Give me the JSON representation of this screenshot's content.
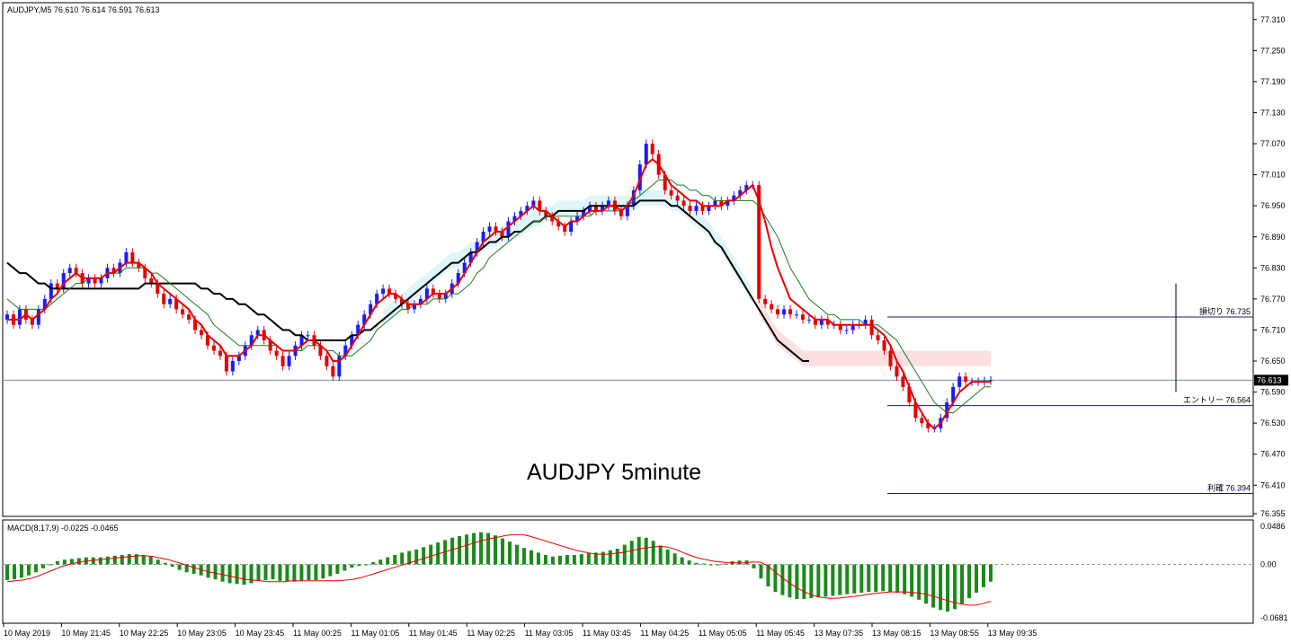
{
  "window": {
    "header": "AUDJPY,M5  76.610 76.614 76.591 76.613",
    "watermark": "AUDJPY 5minute"
  },
  "colors": {
    "bull": "#1a1aff",
    "bear": "#e60000",
    "fast_ma": "#e60000",
    "mid_ma": "#1a7a1a",
    "slow_ma": "#000000",
    "cloud_up": "#d8f4f8",
    "cloud_down": "#fbdada",
    "histogram": "#1a8a1a",
    "signal": "#e60000"
  },
  "chart_data": [
    {
      "type": "candlestick",
      "symbol": "AUDJPY",
      "timeframe": "M5",
      "ohlc_header": {
        "open": 76.61,
        "high": 76.614,
        "low": 76.591,
        "close": 76.613
      },
      "price_axis": {
        "ylim": [
          76.355,
          77.32
        ],
        "ticks": [
          "77.310",
          "77.250",
          "77.190",
          "77.130",
          "77.070",
          "77.010",
          "76.950",
          "76.890",
          "76.830",
          "76.770",
          "76.710",
          "76.650",
          "76.590",
          "76.530",
          "76.470",
          "76.410",
          "76.355"
        ]
      },
      "current_price": "76.613",
      "levels": [
        {
          "label": "損切り 76.735",
          "price": 76.735
        },
        {
          "label": "エントリー 76.564",
          "price": 76.564
        },
        {
          "label": "利確 76.394",
          "price": 76.394
        }
      ],
      "time_labels": [
        "10 May 2019",
        "10 May 21:45",
        "10 May 22:25",
        "10 May 23:05",
        "10 May 23:45",
        "11 May 00:25",
        "11 May 01:05",
        "11 May 01:45",
        "11 May 02:25",
        "11 May 03:05",
        "11 May 03:45",
        "11 May 04:25",
        "11 May 05:05",
        "11 May 05:45",
        "13 May 07:35",
        "13 May 08:15",
        "13 May 08:55",
        "13 May 09:35"
      ],
      "closes": [
        76.74,
        76.72,
        76.75,
        76.73,
        76.72,
        76.75,
        76.77,
        76.8,
        76.79,
        76.82,
        76.83,
        76.82,
        76.8,
        76.81,
        76.8,
        76.81,
        76.83,
        76.82,
        76.84,
        76.86,
        76.84,
        76.83,
        76.81,
        76.8,
        76.78,
        76.76,
        76.77,
        76.75,
        76.74,
        76.73,
        76.71,
        76.7,
        76.68,
        76.67,
        76.66,
        76.63,
        76.65,
        76.66,
        76.68,
        76.7,
        76.71,
        76.69,
        76.67,
        76.66,
        76.64,
        76.66,
        76.68,
        76.7,
        76.7,
        76.68,
        76.66,
        76.64,
        76.62,
        76.66,
        76.68,
        76.7,
        76.72,
        76.74,
        76.76,
        76.78,
        76.79,
        76.78,
        76.77,
        76.76,
        76.75,
        76.76,
        76.77,
        76.79,
        76.78,
        76.77,
        76.78,
        76.8,
        76.82,
        76.84,
        76.86,
        76.88,
        76.9,
        76.91,
        76.9,
        76.89,
        76.92,
        76.93,
        76.94,
        76.95,
        76.96,
        76.94,
        76.93,
        76.92,
        76.91,
        76.9,
        76.92,
        76.93,
        76.94,
        76.95,
        76.94,
        76.95,
        76.96,
        76.94,
        76.93,
        76.95,
        76.98,
        77.03,
        77.07,
        77.05,
        77.01,
        76.98,
        76.97,
        76.96,
        76.95,
        76.94,
        76.95,
        76.94,
        76.95,
        76.96,
        76.95,
        76.96,
        76.97,
        76.98,
        76.99,
        76.99,
        76.77,
        76.76,
        76.75,
        76.74,
        76.75,
        76.74,
        76.74,
        76.73,
        76.73,
        76.72,
        76.73,
        76.72,
        76.72,
        76.71,
        76.71,
        76.72,
        76.72,
        76.73,
        76.7,
        76.69,
        76.67,
        76.64,
        76.62,
        76.6,
        76.57,
        76.54,
        76.53,
        76.52,
        76.52,
        76.54,
        76.57,
        76.6,
        76.62,
        76.61,
        76.61,
        76.61,
        76.612,
        76.613
      ],
      "fast_ma": [
        76.73,
        76.73,
        76.73,
        76.74,
        76.73,
        76.74,
        76.75,
        76.77,
        76.78,
        76.8,
        76.81,
        76.82,
        76.81,
        76.81,
        76.81,
        76.81,
        76.82,
        76.82,
        76.83,
        76.84,
        76.84,
        76.84,
        76.83,
        76.82,
        76.8,
        76.79,
        76.78,
        76.77,
        76.76,
        76.75,
        76.73,
        76.72,
        76.7,
        76.69,
        76.68,
        76.66,
        76.66,
        76.66,
        76.67,
        76.68,
        76.7,
        76.7,
        76.69,
        76.68,
        76.67,
        76.67,
        76.67,
        76.68,
        76.69,
        76.69,
        76.68,
        76.67,
        76.65,
        76.65,
        76.66,
        76.68,
        76.7,
        76.72,
        76.74,
        76.76,
        76.77,
        76.78,
        76.78,
        76.77,
        76.76,
        76.76,
        76.76,
        76.77,
        76.78,
        76.78,
        76.78,
        76.79,
        76.8,
        76.82,
        76.84,
        76.86,
        76.88,
        76.89,
        76.9,
        76.9,
        76.91,
        76.92,
        76.93,
        76.94,
        76.95,
        76.94,
        76.94,
        76.93,
        76.92,
        76.91,
        76.92,
        76.92,
        76.93,
        76.94,
        76.94,
        76.94,
        76.95,
        76.95,
        76.94,
        76.95,
        76.97,
        77.0,
        77.03,
        77.04,
        77.03,
        77.01,
        76.99,
        76.98,
        76.97,
        76.96,
        76.96,
        76.95,
        76.95,
        76.95,
        76.95,
        76.96,
        76.96,
        76.97,
        76.98,
        76.99,
        76.96,
        76.92,
        76.87,
        76.83,
        76.8,
        76.77,
        76.76,
        76.75,
        76.74,
        76.73,
        76.73,
        76.73,
        76.72,
        76.72,
        76.72,
        76.72,
        76.72,
        76.72,
        76.72,
        76.71,
        76.7,
        76.68,
        76.65,
        76.63,
        76.6,
        76.57,
        76.55,
        76.53,
        76.52,
        76.53,
        76.55,
        76.57,
        76.59,
        76.6,
        76.61,
        76.61,
        76.61,
        76.61
      ],
      "mid_ma": [
        76.77,
        76.76,
        76.75,
        76.75,
        76.75,
        76.75,
        76.75,
        76.76,
        76.77,
        76.78,
        76.79,
        76.8,
        76.8,
        76.81,
        76.81,
        76.81,
        76.82,
        76.82,
        76.82,
        76.83,
        76.83,
        76.83,
        76.83,
        76.82,
        76.82,
        76.81,
        76.8,
        76.79,
        76.78,
        76.77,
        76.76,
        76.75,
        76.74,
        76.72,
        76.71,
        76.7,
        76.69,
        76.68,
        76.68,
        76.68,
        76.68,
        76.68,
        76.68,
        76.68,
        76.67,
        76.67,
        76.67,
        76.67,
        76.68,
        76.68,
        76.68,
        76.67,
        76.67,
        76.66,
        76.66,
        76.66,
        76.67,
        76.68,
        76.69,
        76.71,
        76.72,
        76.73,
        76.74,
        76.75,
        76.75,
        76.76,
        76.76,
        76.76,
        76.77,
        76.77,
        76.77,
        76.78,
        76.78,
        76.79,
        76.8,
        76.82,
        76.83,
        76.85,
        76.86,
        76.87,
        76.88,
        76.89,
        76.9,
        76.91,
        76.92,
        76.92,
        76.93,
        76.93,
        76.93,
        76.93,
        76.93,
        76.93,
        76.93,
        76.93,
        76.94,
        76.94,
        76.94,
        76.94,
        76.94,
        76.95,
        76.96,
        76.97,
        76.98,
        76.99,
        77.0,
        77.0,
        77.0,
        76.99,
        76.99,
        76.98,
        76.98,
        76.97,
        76.97,
        76.96,
        76.96,
        76.96,
        76.96,
        76.96,
        76.96,
        76.96,
        76.95,
        76.93,
        76.91,
        76.89,
        76.86,
        76.83,
        76.81,
        76.79,
        76.77,
        76.76,
        76.75,
        76.74,
        76.74,
        76.73,
        76.73,
        76.73,
        76.73,
        76.72,
        76.72,
        76.72,
        76.71,
        76.7,
        76.69,
        76.67,
        76.65,
        76.63,
        76.61,
        76.59,
        76.57,
        76.56,
        76.55,
        76.55,
        76.56,
        76.57,
        76.58,
        76.59,
        76.6,
        76.6
      ],
      "slow_ma": [
        76.84,
        76.83,
        76.82,
        76.82,
        76.81,
        76.8,
        76.8,
        76.79,
        76.79,
        76.79,
        76.79,
        76.79,
        76.79,
        76.79,
        76.79,
        76.79,
        76.79,
        76.79,
        76.79,
        76.79,
        76.79,
        76.79,
        76.8,
        76.8,
        76.8,
        76.8,
        76.8,
        76.8,
        76.8,
        76.8,
        76.8,
        76.79,
        76.79,
        76.78,
        76.78,
        76.77,
        76.77,
        76.76,
        76.76,
        76.75,
        76.74,
        76.74,
        76.73,
        76.72,
        76.71,
        76.71,
        76.7,
        76.7,
        76.69,
        76.69,
        76.69,
        76.69,
        76.69,
        76.69,
        76.69,
        76.7,
        76.7,
        76.71,
        76.71,
        76.72,
        76.73,
        76.74,
        76.75,
        76.76,
        76.77,
        76.78,
        76.79,
        76.8,
        76.81,
        76.82,
        76.83,
        76.84,
        76.84,
        76.85,
        76.86,
        76.86,
        76.87,
        76.88,
        76.88,
        76.89,
        76.89,
        76.9,
        76.9,
        76.91,
        76.92,
        76.92,
        76.93,
        76.93,
        76.94,
        76.94,
        76.94,
        76.94,
        76.94,
        76.95,
        76.95,
        76.95,
        76.95,
        76.95,
        76.95,
        76.95,
        76.95,
        76.96,
        76.96,
        76.96,
        76.96,
        76.96,
        76.95,
        76.95,
        76.94,
        76.93,
        76.92,
        76.91,
        76.9,
        76.88,
        76.87,
        76.85,
        76.83,
        76.81,
        76.79,
        76.77,
        76.75,
        76.73,
        76.71,
        76.69,
        76.68,
        76.67,
        76.66,
        76.65,
        76.65
      ],
      "macd_panel": {
        "label": "MACD(8,17,9) -0.0225 -0.0465",
        "ylim": [
          -0.0681,
          0.0486
        ],
        "ticks": [
          "0.0486",
          "0.00",
          "-0.0681"
        ],
        "histogram": [
          -0.02,
          -0.019,
          -0.017,
          -0.014,
          -0.01,
          -0.005,
          0.0,
          0.004,
          0.006,
          0.007,
          0.008,
          0.009,
          0.009,
          0.009,
          0.01,
          0.011,
          0.012,
          0.013,
          0.013,
          0.012,
          0.01,
          0.006,
          0.002,
          -0.003,
          -0.007,
          -0.01,
          -0.012,
          -0.014,
          -0.017,
          -0.019,
          -0.022,
          -0.024,
          -0.025,
          -0.026,
          -0.024,
          -0.021,
          -0.02,
          -0.019,
          -0.021,
          -0.022,
          -0.022,
          -0.021,
          -0.02,
          -0.02,
          -0.018,
          -0.015,
          -0.012,
          -0.008,
          -0.004,
          -0.002,
          0.0,
          0.003,
          0.006,
          0.009,
          0.012,
          0.015,
          0.017,
          0.019,
          0.022,
          0.025,
          0.028,
          0.031,
          0.034,
          0.036,
          0.038,
          0.04,
          0.041,
          0.04,
          0.037,
          0.033,
          0.029,
          0.025,
          0.021,
          0.018,
          0.015,
          0.012,
          0.01,
          0.011,
          0.012,
          0.012,
          0.013,
          0.014,
          0.015,
          0.016,
          0.018,
          0.02,
          0.025,
          0.03,
          0.035,
          0.034,
          0.03,
          0.024,
          0.019,
          0.014,
          0.009,
          0.005,
          0.002,
          0.001,
          0.0,
          0.0,
          0.001,
          0.004,
          0.005,
          0.005,
          -0.005,
          -0.018,
          -0.028,
          -0.035,
          -0.039,
          -0.042,
          -0.044,
          -0.044,
          -0.043,
          -0.042,
          -0.041,
          -0.04,
          -0.039,
          -0.038,
          -0.037,
          -0.036,
          -0.035,
          -0.035,
          -0.034,
          -0.035,
          -0.036,
          -0.038,
          -0.041,
          -0.045,
          -0.05,
          -0.055,
          -0.058,
          -0.06,
          -0.057,
          -0.05,
          -0.043,
          -0.036,
          -0.029,
          -0.022
        ],
        "signal": [
          -0.022,
          -0.021,
          -0.02,
          -0.018,
          -0.015,
          -0.011,
          -0.007,
          -0.003,
          0.0,
          0.002,
          0.004,
          0.005,
          0.006,
          0.007,
          0.008,
          0.009,
          0.01,
          0.011,
          0.011,
          0.01,
          0.008,
          0.006,
          0.003,
          0.0,
          -0.003,
          -0.006,
          -0.009,
          -0.011,
          -0.013,
          -0.015,
          -0.017,
          -0.019,
          -0.02,
          -0.021,
          -0.022,
          -0.022,
          -0.022,
          -0.021,
          -0.021,
          -0.021,
          -0.021,
          -0.021,
          -0.021,
          -0.021,
          -0.02,
          -0.019,
          -0.017,
          -0.014,
          -0.011,
          -0.008,
          -0.005,
          -0.002,
          0.001,
          0.004,
          0.007,
          0.01,
          0.013,
          0.016,
          0.019,
          0.022,
          0.025,
          0.028,
          0.031,
          0.033,
          0.035,
          0.037,
          0.038,
          0.038,
          0.036,
          0.033,
          0.03,
          0.027,
          0.024,
          0.021,
          0.018,
          0.016,
          0.014,
          0.013,
          0.013,
          0.014,
          0.015,
          0.017,
          0.019,
          0.021,
          0.022,
          0.023,
          0.022,
          0.019,
          0.015,
          0.011,
          0.008,
          0.006,
          0.004,
          0.003,
          0.002,
          0.002,
          0.002,
          0.003,
          0.003,
          -0.002,
          -0.01,
          -0.018,
          -0.025,
          -0.031,
          -0.036,
          -0.04,
          -0.042,
          -0.043,
          -0.043,
          -0.042,
          -0.041,
          -0.04,
          -0.038,
          -0.037,
          -0.036,
          -0.035,
          -0.035,
          -0.035,
          -0.036,
          -0.037,
          -0.039,
          -0.042,
          -0.045,
          -0.048,
          -0.05,
          -0.052,
          -0.052,
          -0.05,
          -0.047
        ]
      }
    }
  ]
}
